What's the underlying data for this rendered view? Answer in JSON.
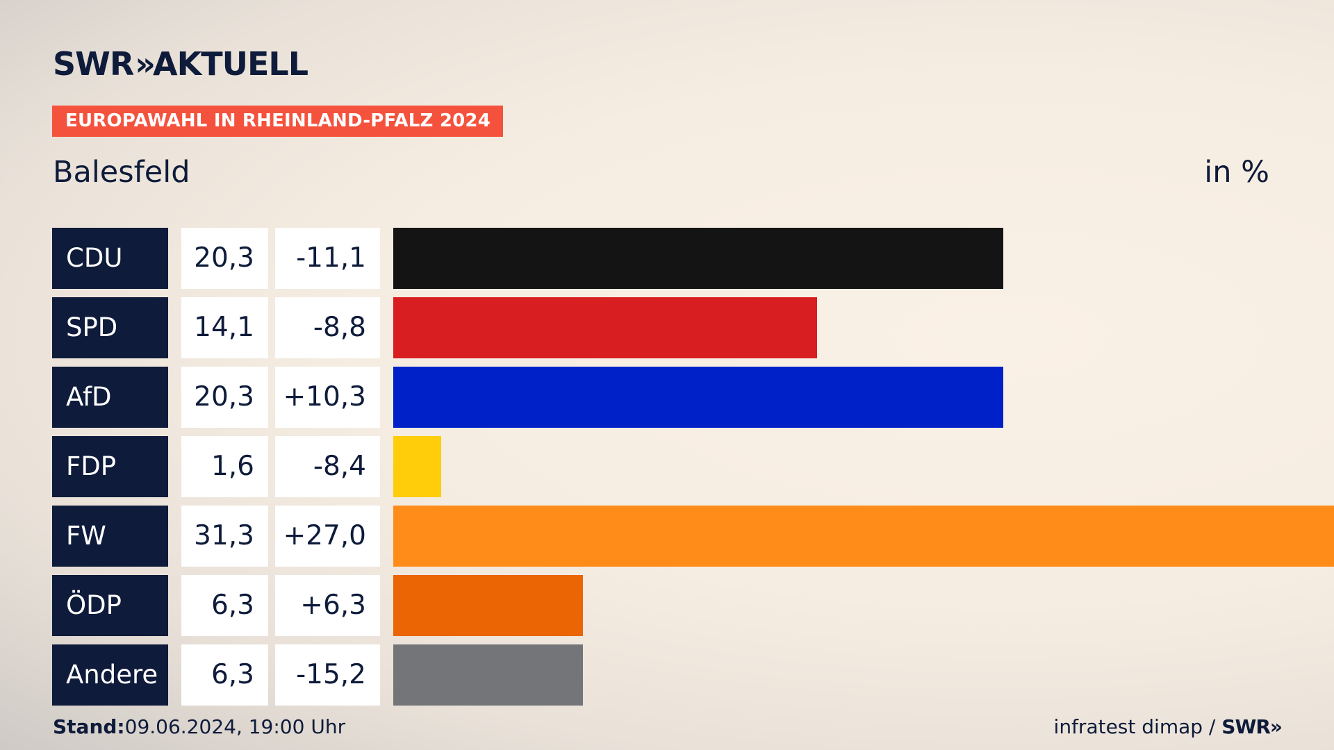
{
  "header": {
    "logo_text": "SWR",
    "logo_arrows": "»",
    "logo_suffix": "AKTUELL",
    "banner": "EUROPAWAHL IN RHEINLAND-PFALZ 2024",
    "region": "Balesfeld",
    "unit": "in %"
  },
  "chart_data": {
    "type": "bar",
    "categories": [
      "CDU",
      "SPD",
      "AfD",
      "FDP",
      "FW",
      "ÖDP",
      "Andere"
    ],
    "values": [
      20.3,
      14.1,
      20.3,
      1.6,
      31.3,
      6.3,
      6.3
    ],
    "value_labels": [
      "20,3",
      "14,1",
      "20,3",
      "1,6",
      "31,3",
      "6,3",
      "6,3"
    ],
    "changes": [
      -11.1,
      -8.8,
      10.3,
      -8.4,
      27.0,
      6.3,
      -15.2
    ],
    "change_labels": [
      "-11,1",
      "-8,8",
      "+10,3",
      "-8,4",
      "+27,0",
      "+6,3",
      "-15,2"
    ],
    "colors": [
      "#141414",
      "#d91e22",
      "#0021c8",
      "#ffcd0a",
      "#ff8c19",
      "#eb6505",
      "#747578"
    ],
    "orientation": "horizontal",
    "xlim": [
      0,
      31.3
    ]
  },
  "footer": {
    "stand_label": "Stand:",
    "stand_value": "09.06.2024, 19:00 Uhr",
    "source": "infratest dimap /",
    "source_logo": "SWR",
    "source_logo_arrows": "»"
  }
}
